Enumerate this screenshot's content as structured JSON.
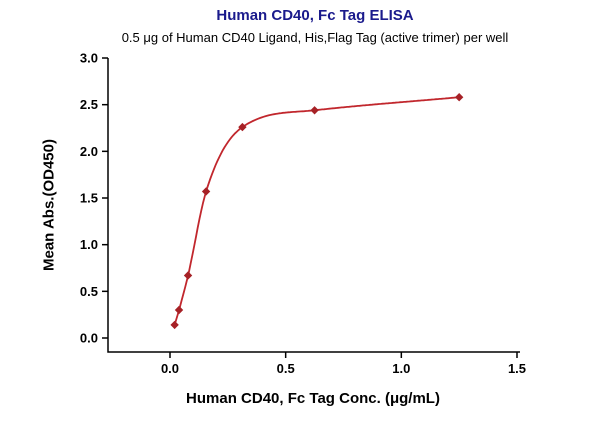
{
  "chart_data": {
    "type": "scatter",
    "title": "Human CD40, Fc Tag ELISA",
    "subtitle": "0.5 μg of Human CD40 Ligand, His,Flag Tag (active trimer) per well",
    "xlabel": "Human CD40, Fc Tag Conc. (μg/mL)",
    "ylabel": "Mean Abs.(OD450)",
    "xlim": [
      0,
      1.5
    ],
    "ylim": [
      0,
      3.0
    ],
    "xticks": [
      0.0,
      0.5,
      1.0,
      1.5
    ],
    "yticks": [
      0.0,
      0.5,
      1.0,
      1.5,
      2.0,
      2.5,
      3.0
    ],
    "grid": false,
    "legend": "none",
    "points": [
      [
        0.02,
        0.14
      ],
      [
        0.039,
        0.3
      ],
      [
        0.078,
        0.67
      ],
      [
        0.156,
        1.57
      ],
      [
        0.313,
        2.26
      ],
      [
        0.625,
        2.44
      ],
      [
        1.25,
        2.58
      ]
    ],
    "colors": {
      "title": "#1a1a8c",
      "curve": "#c1272d",
      "marker": "#a62126",
      "axis": "#000000"
    }
  }
}
